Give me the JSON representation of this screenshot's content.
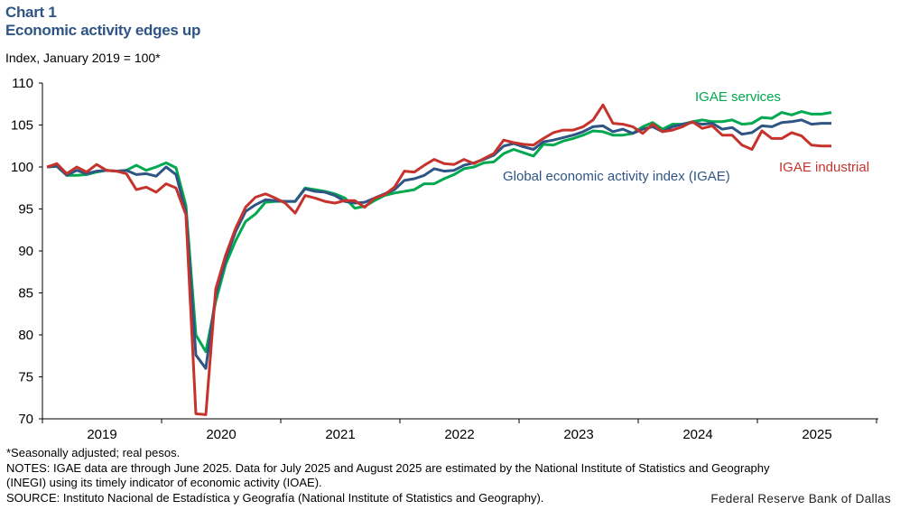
{
  "chart_data": {
    "type": "line",
    "title": "Chart 1",
    "subtitle": "Economic activity edges up",
    "ylabel": "Index, January 2019 = 100*",
    "xlabel": "",
    "ylim": [
      70,
      110
    ],
    "yticks": [
      70,
      75,
      80,
      85,
      90,
      95,
      100,
      105,
      110
    ],
    "xtick_labels": [
      "2019",
      "2020",
      "2021",
      "2022",
      "2023",
      "2024",
      "2025"
    ],
    "x_start": "2019-01",
    "x_end": "2025-08",
    "frequency": "monthly",
    "grid": false,
    "series": [
      {
        "name": "IGAE services",
        "color": "#00a94f",
        "label_pos": "top-right",
        "values": [
          100,
          100.1,
          99.0,
          99.0,
          99.1,
          99.4,
          99.6,
          99.5,
          99.6,
          100.2,
          99.6,
          100.0,
          100.5,
          99.9,
          95.4,
          80.0,
          78.0,
          84.0,
          88.4,
          91.2,
          93.5,
          94.4,
          95.8,
          95.9,
          95.9,
          95.9,
          97.5,
          97.3,
          97.1,
          96.8,
          96.3,
          95.1,
          95.3,
          96.0,
          96.6,
          96.9,
          97.1,
          97.3,
          98.0,
          98.0,
          98.6,
          99.1,
          99.8,
          100.0,
          100.5,
          100.6,
          101.6,
          102.1,
          101.7,
          101.3,
          102.7,
          102.6,
          103.1,
          103.4,
          103.8,
          104.3,
          104.2,
          103.8,
          103.8,
          104.0,
          104.8,
          105.3,
          104.5,
          105.1,
          105.1,
          105.4,
          105.6,
          105.4,
          105.4,
          105.6,
          105.1,
          105.2,
          105.9,
          105.8,
          106.5,
          106.2,
          106.6,
          106.3,
          106.3,
          106.5
        ]
      },
      {
        "name": "Global economic activity index (IGAE)",
        "color": "#2e5583",
        "label_pos": "middle-right",
        "values": [
          100,
          100.1,
          99.0,
          99.6,
          99.2,
          99.5,
          99.6,
          99.5,
          99.6,
          99.1,
          99.2,
          98.9,
          100.0,
          99.1,
          94.6,
          77.6,
          76.0,
          84.8,
          89.0,
          92.3,
          94.7,
          95.5,
          96.1,
          96.0,
          95.9,
          95.9,
          97.4,
          97.1,
          97.0,
          96.6,
          95.9,
          95.7,
          95.8,
          96.3,
          96.8,
          97.3,
          98.4,
          98.6,
          99.0,
          99.8,
          99.5,
          99.6,
          100.2,
          100.5,
          100.9,
          101.4,
          102.5,
          102.8,
          102.4,
          102.1,
          103.0,
          103.2,
          103.5,
          103.8,
          104.2,
          104.8,
          104.9,
          104.2,
          104.5,
          104.0,
          104.5,
          104.8,
          104.2,
          104.8,
          105.1,
          105.3,
          105.1,
          105.2,
          104.5,
          104.7,
          103.9,
          104.1,
          104.9,
          104.8,
          105.3,
          105.4,
          105.6,
          105.1,
          105.2,
          105.2
        ]
      },
      {
        "name": "IGAE industrial",
        "color": "#c6332d",
        "label_pos": "right",
        "values": [
          100,
          100.4,
          99.2,
          100.0,
          99.4,
          100.3,
          99.6,
          99.5,
          99.2,
          97.3,
          97.6,
          97.0,
          98.0,
          97.5,
          94.3,
          70.6,
          70.5,
          85.5,
          89.5,
          92.7,
          95.2,
          96.4,
          96.8,
          96.3,
          95.7,
          94.5,
          96.6,
          96.3,
          95.9,
          95.7,
          96.0,
          96.0,
          95.2,
          96.3,
          96.7,
          97.6,
          99.5,
          99.4,
          100.2,
          100.9,
          100.4,
          100.3,
          100.9,
          100.4,
          101.0,
          101.6,
          103.2,
          102.9,
          102.7,
          102.6,
          103.4,
          104.1,
          104.4,
          104.4,
          104.8,
          105.6,
          107.4,
          105.2,
          105.1,
          104.8,
          104.0,
          105.1,
          104.2,
          104.4,
          104.8,
          105.4,
          104.6,
          104.9,
          103.8,
          103.8,
          102.6,
          102.1,
          104.3,
          103.4,
          103.4,
          104.1,
          103.7,
          102.6,
          102.5,
          102.5
        ]
      }
    ]
  },
  "header": {
    "chart_num": "Chart 1",
    "title": "Economic activity edges up",
    "unit": "Index,  January 2019 = 100*"
  },
  "footer": {
    "note1": "*Seasonally adjusted; real pesos.",
    "note2": "NOTES: IGAE data are through June 2025. Data for July 2025 and August 2025 are estimated by the National Institute of Statistics and Geography",
    "note3": "(INEGI)  using its timely indicator of economic activity (IOAE).",
    "source": "SOURCE: Instituto Nacional de Estadística y Geografía (National Institute of Statistics and Geography).",
    "credit": "Federal Reserve Bank of Dallas"
  }
}
